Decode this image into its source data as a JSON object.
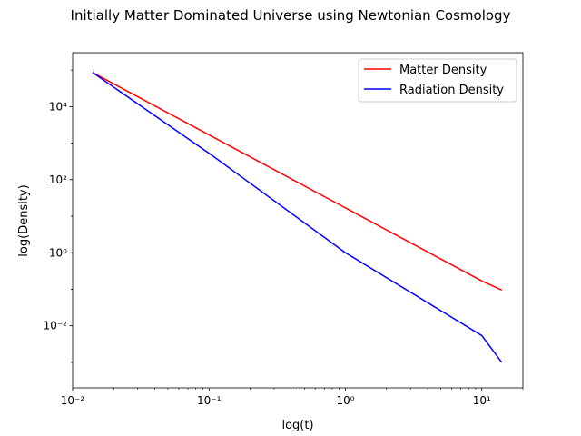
{
  "chart_data": {
    "type": "line",
    "title": "Initially Matter Dominated Universe using Newtonian Cosmology",
    "xlabel": "log(t)",
    "ylabel": "log(Density)",
    "xscale": "log",
    "yscale": "log",
    "xlim": [
      0.01,
      20
    ],
    "ylim": [
      0.0002,
      300000
    ],
    "x_ticks": [
      {
        "value": 0.01,
        "label": "10⁻²"
      },
      {
        "value": 0.1,
        "label": "10⁻¹"
      },
      {
        "value": 1,
        "label": "10⁰"
      },
      {
        "value": 10,
        "label": "10¹"
      }
    ],
    "y_ticks": [
      {
        "value": 0.01,
        "label": "10⁻²"
      },
      {
        "value": 1,
        "label": "10⁰"
      },
      {
        "value": 100,
        "label": "10²"
      },
      {
        "value": 10000,
        "label": "10⁴"
      }
    ],
    "grid": false,
    "legend": {
      "position": "top-right"
    },
    "series": [
      {
        "name": "Matter Density",
        "color": "#ff0000",
        "x": [
          0.014,
          0.1,
          1,
          10,
          14
        ],
        "y": [
          86000,
          1690,
          16.9,
          0.169,
          0.095
        ]
      },
      {
        "name": "Radiation Density",
        "color": "#0000ff",
        "x": [
          0.014,
          0.1,
          1,
          10,
          14
        ],
        "y": [
          86000,
          530,
          1.0,
          0.0054,
          0.001
        ]
      }
    ]
  }
}
